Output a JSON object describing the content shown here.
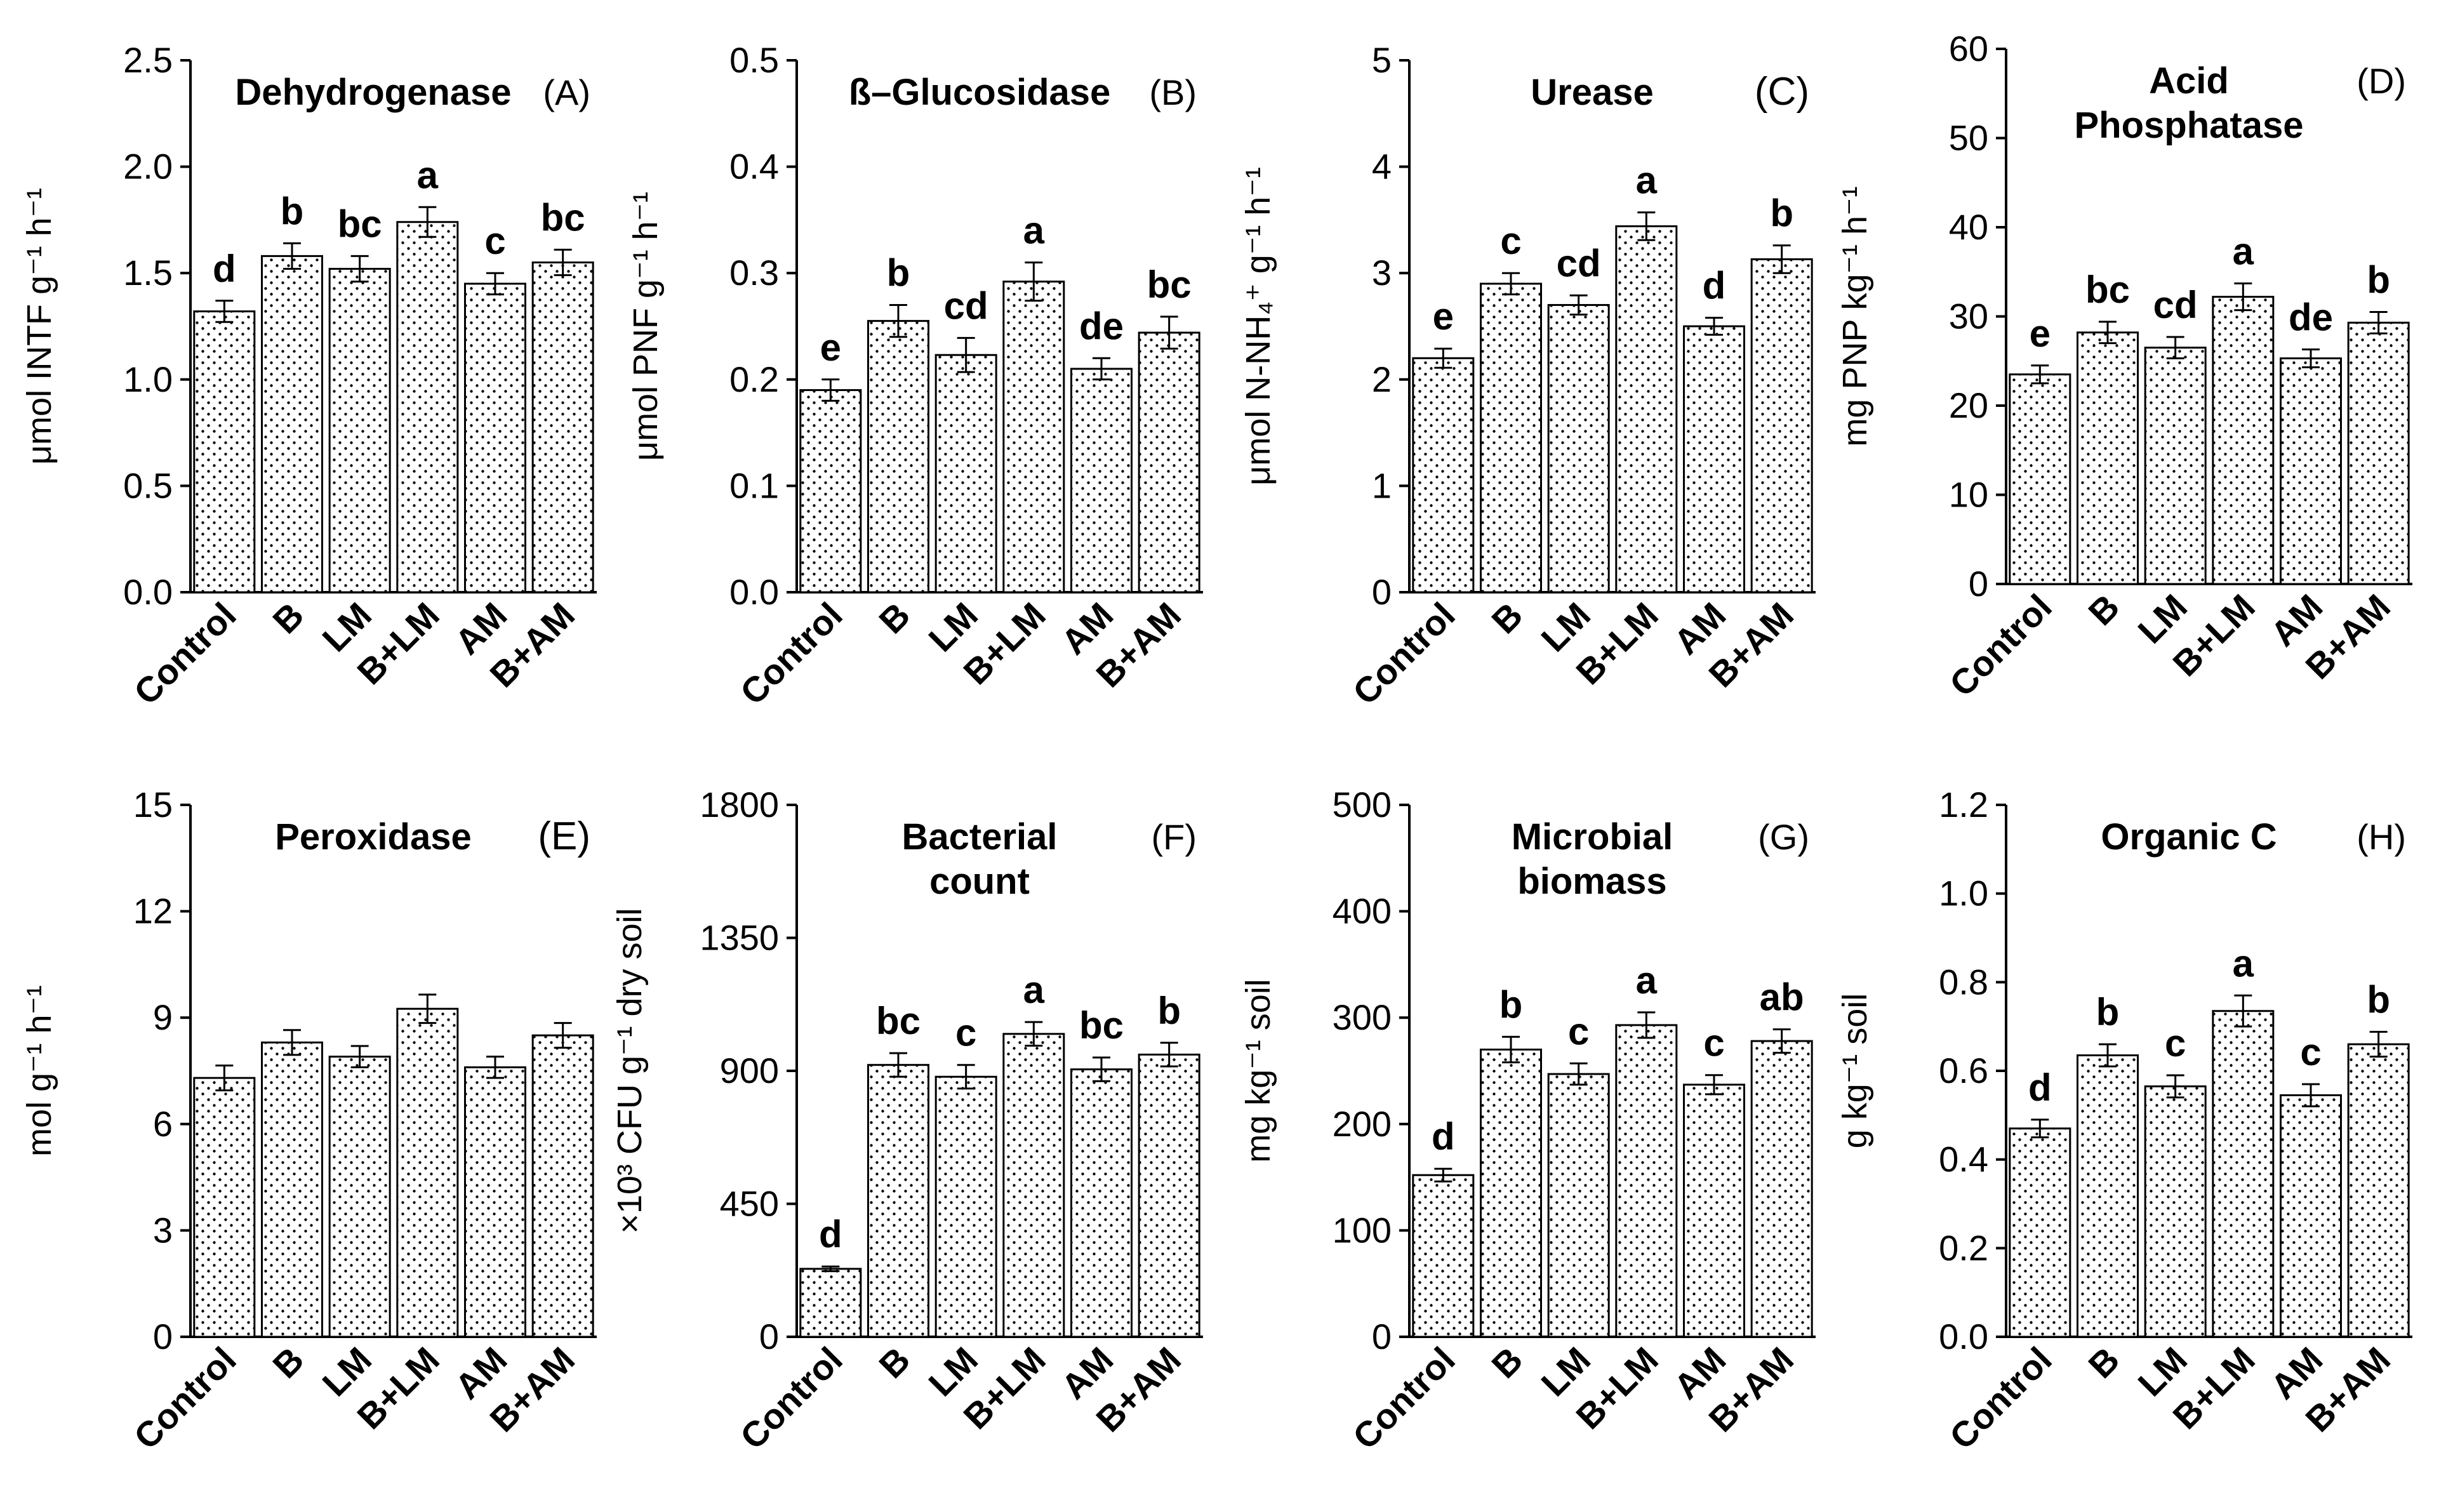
{
  "chart_data": [
    {
      "type": "bar",
      "panel": "(A)",
      "title": [
        "Dehydrogenase"
      ],
      "ylabel": "μmol INTF g⁻¹ h⁻¹",
      "ylim": [
        0,
        2.5
      ],
      "yticks": [
        "0.0",
        "0.5",
        "1.0",
        "1.5",
        "2.0",
        "2.5"
      ],
      "categories": [
        "Control",
        "B",
        "LM",
        "B+LM",
        "AM",
        "B+AM"
      ],
      "values": [
        1.32,
        1.58,
        1.52,
        1.74,
        1.45,
        1.55
      ],
      "errors": [
        0.05,
        0.06,
        0.06,
        0.07,
        0.05,
        0.06
      ],
      "letters": [
        "d",
        "b",
        "bc",
        "a",
        "c",
        "bc"
      ]
    },
    {
      "type": "bar",
      "panel": "(B)",
      "title": [
        "ß–Glucosidase"
      ],
      "ylabel": "μmol PNF g⁻¹ h⁻¹",
      "ylim": [
        0,
        0.5
      ],
      "yticks": [
        "0.0",
        "0.1",
        "0.2",
        "0.3",
        "0.4",
        "0.5"
      ],
      "categories": [
        "Control",
        "B",
        "LM",
        "B+LM",
        "AM",
        "B+AM"
      ],
      "values": [
        0.19,
        0.255,
        0.223,
        0.292,
        0.21,
        0.244
      ],
      "errors": [
        0.01,
        0.015,
        0.016,
        0.018,
        0.01,
        0.015
      ],
      "letters": [
        "e",
        "b",
        "cd",
        "a",
        "de",
        "bc"
      ]
    },
    {
      "type": "bar",
      "panel": "(C)",
      "title": [
        "Urease"
      ],
      "ylabel": "μmol N-NH₄⁺ g⁻¹ h⁻¹",
      "ylim": [
        0,
        5
      ],
      "yticks": [
        "0",
        "1",
        "2",
        "3",
        "4",
        "5"
      ],
      "categories": [
        "Control",
        "B",
        "LM",
        "B+LM",
        "AM",
        "B+AM"
      ],
      "values": [
        2.2,
        2.9,
        2.7,
        3.44,
        2.5,
        3.13
      ],
      "errors": [
        0.09,
        0.1,
        0.09,
        0.13,
        0.08,
        0.13
      ],
      "letters": [
        "e",
        "c",
        "cd",
        "a",
        "d",
        "b"
      ]
    },
    {
      "type": "bar",
      "panel": "(D)",
      "title": [
        "Acid",
        "Phosphatase"
      ],
      "ylabel": "mg PNP kg⁻¹ h⁻¹",
      "ylim": [
        0,
        60
      ],
      "yticks": [
        "0",
        "10",
        "20",
        "30",
        "40",
        "50",
        "60"
      ],
      "categories": [
        "Control",
        "B",
        "LM",
        "B+LM",
        "AM",
        "B+AM"
      ],
      "values": [
        23.5,
        28.2,
        26.5,
        32.2,
        25.3,
        29.3
      ],
      "errors": [
        1.0,
        1.2,
        1.2,
        1.5,
        1.0,
        1.2
      ],
      "letters": [
        "e",
        "bc",
        "cd",
        "a",
        "de",
        "b"
      ]
    },
    {
      "type": "bar",
      "panel": "(E)",
      "title": [
        "Peroxidase"
      ],
      "ylabel": "mol g⁻¹ h⁻¹",
      "ylim": [
        0,
        15
      ],
      "yticks": [
        "0",
        "3",
        "6",
        "9",
        "12",
        "15"
      ],
      "categories": [
        "Control",
        "B",
        "LM",
        "B+LM",
        "AM",
        "B+AM"
      ],
      "values": [
        7.3,
        8.3,
        7.9,
        9.25,
        7.6,
        8.5
      ],
      "errors": [
        0.35,
        0.35,
        0.3,
        0.4,
        0.3,
        0.35
      ],
      "letters": [
        "",
        "",
        "",
        "",
        "",
        ""
      ]
    },
    {
      "type": "bar",
      "panel": "(F)",
      "title": [
        "Bacterial",
        "count"
      ],
      "ylabel": "×10³ CFU g⁻¹ dry soil",
      "ylim": [
        0,
        1800
      ],
      "yticks": [
        "0",
        "450",
        "900",
        "1350",
        "1800"
      ],
      "categories": [
        "Control",
        "B",
        "LM",
        "B+LM",
        "AM",
        "B+AM"
      ],
      "values": [
        230,
        920,
        880,
        1025,
        905,
        955
      ],
      "errors": [
        8,
        40,
        40,
        40,
        40,
        40
      ],
      "letters": [
        "d",
        "bc",
        "c",
        "a",
        "bc",
        "b"
      ]
    },
    {
      "type": "bar",
      "panel": "(G)",
      "title": [
        "Microbial",
        "biomass"
      ],
      "ylabel": "mg kg⁻¹ soil",
      "ylim": [
        0,
        500
      ],
      "yticks": [
        "0",
        "100",
        "200",
        "300",
        "400",
        "500"
      ],
      "categories": [
        "Control",
        "B",
        "LM",
        "B+LM",
        "AM",
        "B+AM"
      ],
      "values": [
        152,
        270,
        247,
        293,
        237,
        278
      ],
      "errors": [
        6,
        12,
        10,
        12,
        9,
        11
      ],
      "letters": [
        "d",
        "b",
        "c",
        "a",
        "c",
        "ab"
      ]
    },
    {
      "type": "bar",
      "panel": "(H)",
      "title": [
        "Organic C"
      ],
      "ylabel": "g kg⁻¹ soil",
      "ylim": [
        0,
        1.2
      ],
      "yticks": [
        "0.0",
        "0.2",
        "0.4",
        "0.6",
        "0.8",
        "1.0",
        "1.2"
      ],
      "categories": [
        "Control",
        "B",
        "LM",
        "B+LM",
        "AM",
        "B+AM"
      ],
      "values": [
        0.47,
        0.635,
        0.565,
        0.735,
        0.545,
        0.66
      ],
      "errors": [
        0.02,
        0.025,
        0.025,
        0.035,
        0.025,
        0.028
      ],
      "letters": [
        "d",
        "b",
        "c",
        "a",
        "c",
        "b"
      ]
    }
  ]
}
